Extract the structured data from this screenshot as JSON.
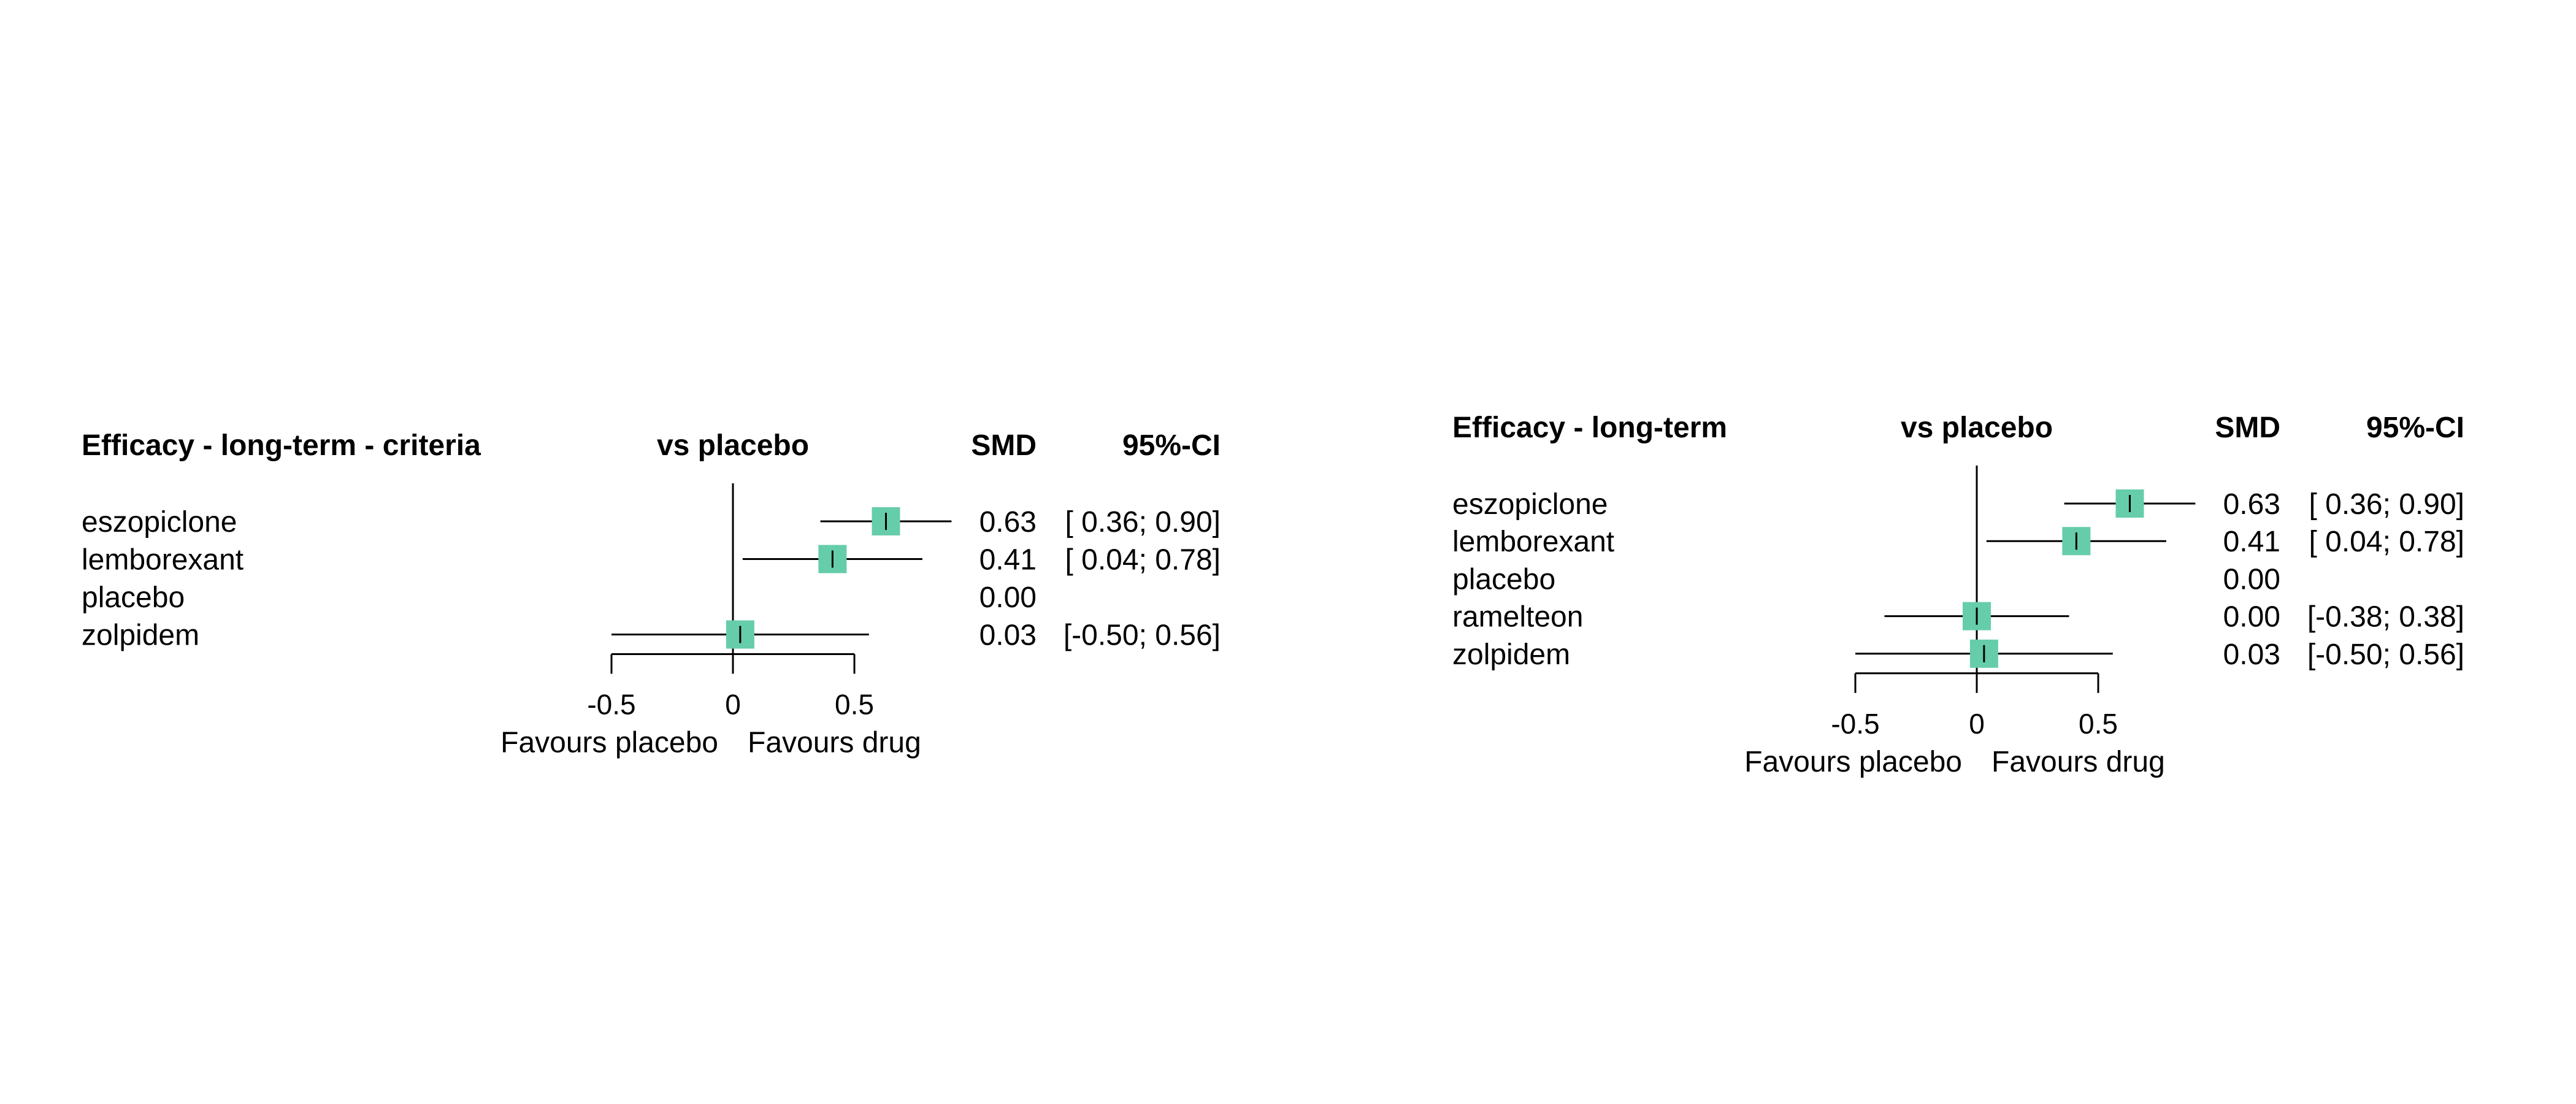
{
  "chart_data": [
    {
      "type": "forest",
      "header_title": "Efficacy - long-term - criteria",
      "header_comparison": "vs placebo",
      "header_estimate": "SMD",
      "header_ci": "95%-CI",
      "xlim": [
        -0.5,
        0.5
      ],
      "ticks": [
        -0.5,
        0,
        0.5
      ],
      "tick_labels": [
        "-0.5",
        "0",
        "0.5"
      ],
      "favours_left": "Favours placebo",
      "favours_right": "Favours drug",
      "marker_color": "#66cdaa",
      "rows": [
        {
          "label": "eszopiclone",
          "estimate": 0.63,
          "lower": 0.36,
          "upper": 0.9,
          "estimate_text": "0.63",
          "ci_text": "[ 0.36; 0.90]"
        },
        {
          "label": "lemborexant",
          "estimate": 0.41,
          "lower": 0.04,
          "upper": 0.78,
          "estimate_text": "0.41",
          "ci_text": "[ 0.04; 0.78]"
        },
        {
          "label": "placebo",
          "estimate": 0.0,
          "lower": null,
          "upper": null,
          "estimate_text": "0.00",
          "ci_text": ""
        },
        {
          "label": "zolpidem",
          "estimate": 0.03,
          "lower": -0.5,
          "upper": 0.56,
          "estimate_text": "0.03",
          "ci_text": "[-0.50; 0.56]"
        }
      ]
    },
    {
      "type": "forest",
      "header_title": "Efficacy - long-term",
      "header_comparison": "vs placebo",
      "header_estimate": "SMD",
      "header_ci": "95%-CI",
      "xlim": [
        -0.5,
        0.5
      ],
      "ticks": [
        -0.5,
        0,
        0.5
      ],
      "tick_labels": [
        "-0.5",
        "0",
        "0.5"
      ],
      "favours_left": "Favours placebo",
      "favours_right": "Favours drug",
      "marker_color": "#66cdaa",
      "rows": [
        {
          "label": "eszopiclone",
          "estimate": 0.63,
          "lower": 0.36,
          "upper": 0.9,
          "estimate_text": "0.63",
          "ci_text": "[ 0.36; 0.90]"
        },
        {
          "label": "lemborexant",
          "estimate": 0.41,
          "lower": 0.04,
          "upper": 0.78,
          "estimate_text": "0.41",
          "ci_text": "[ 0.04; 0.78]"
        },
        {
          "label": "placebo",
          "estimate": 0.0,
          "lower": null,
          "upper": null,
          "estimate_text": "0.00",
          "ci_text": ""
        },
        {
          "label": "ramelteon",
          "estimate": 0.0,
          "lower": -0.38,
          "upper": 0.38,
          "estimate_text": "0.00",
          "ci_text": "[-0.38; 0.38]"
        },
        {
          "label": "zolpidem",
          "estimate": 0.03,
          "lower": -0.5,
          "upper": 0.56,
          "estimate_text": "0.03",
          "ci_text": "[-0.50; 0.56]"
        }
      ]
    }
  ]
}
